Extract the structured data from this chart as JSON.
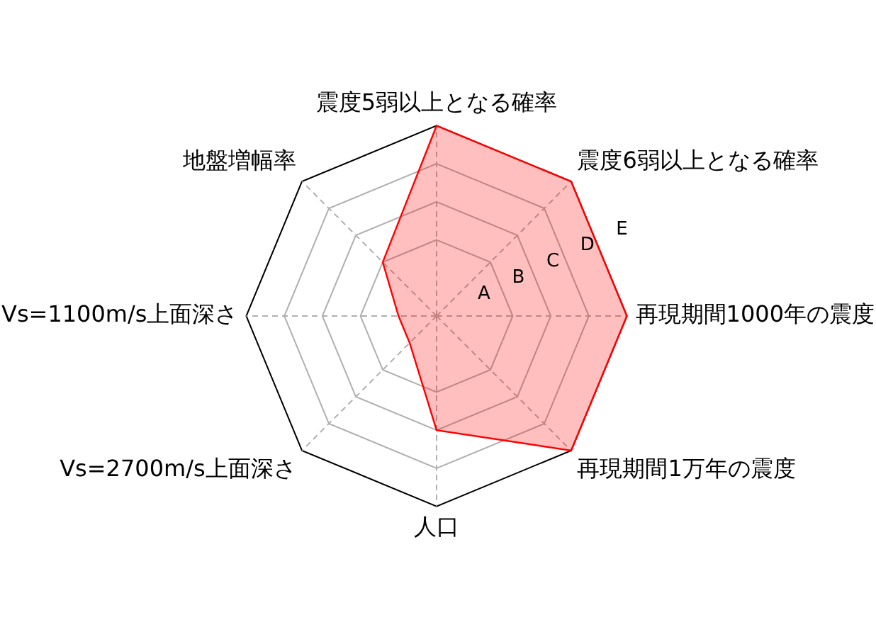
{
  "chart_data": {
    "type": "radar",
    "categories": [
      "震度5弱以上となる確率",
      "震度6弱以上となる確率",
      "再現期間1000年の震度",
      "再現期間1万年の震度",
      "人口",
      "Vs=2700m/s上面深さ",
      "Vs=1100m/s上面深さ",
      "地盤増幅率"
    ],
    "series": [
      {
        "color": "#ff0000",
        "values": [
          5,
          5,
          5,
          5,
          3,
          1,
          1,
          2
        ]
      }
    ],
    "ylim": [
      0,
      5
    ],
    "yticks": [
      {
        "value": 1,
        "label": "A"
      },
      {
        "value": 2,
        "label": "B"
      },
      {
        "value": 3,
        "label": "C"
      },
      {
        "value": 4,
        "label": "D"
      },
      {
        "value": 5,
        "label": "E"
      }
    ],
    "grid": true,
    "marker": "none"
  }
}
